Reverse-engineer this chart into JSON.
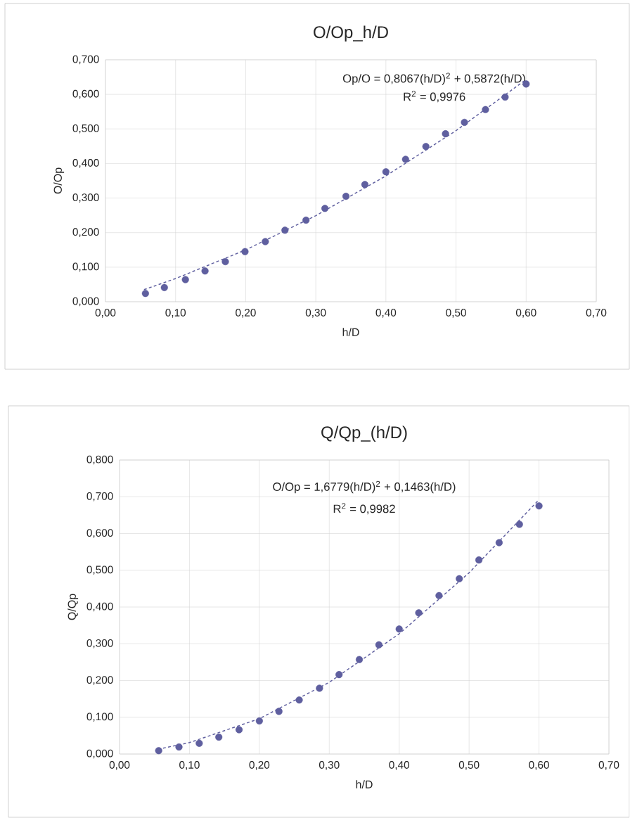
{
  "chart_data": [
    {
      "type": "scatter",
      "title": "O/Op_h/D",
      "xlabel": "h/D",
      "ylabel": "O/Op",
      "xlim": [
        0,
        0.7
      ],
      "ylim": [
        0,
        0.7
      ],
      "xticks": [
        {
          "value": 0,
          "label": "0,00"
        },
        {
          "value": 0.1,
          "label": "0,10"
        },
        {
          "value": 0.2,
          "label": "0,20"
        },
        {
          "value": 0.3,
          "label": "0,30"
        },
        {
          "value": 0.4,
          "label": "0,40"
        },
        {
          "value": 0.5,
          "label": "0,50"
        },
        {
          "value": 0.6,
          "label": "0,60"
        },
        {
          "value": 0.7,
          "label": "0,70"
        }
      ],
      "yticks": [
        {
          "value": 0,
          "label": "0,000"
        },
        {
          "value": 0.1,
          "label": "0,100"
        },
        {
          "value": 0.2,
          "label": "0,200"
        },
        {
          "value": 0.3,
          "label": "0,300"
        },
        {
          "value": 0.4,
          "label": "0,400"
        },
        {
          "value": 0.5,
          "label": "0,500"
        },
        {
          "value": 0.6,
          "label": "0,600"
        },
        {
          "value": 0.7,
          "label": "0,700"
        }
      ],
      "grid": true,
      "annotations": [
        "Op/O = 0,8067(h/D)$^{2}$ + 0,5872(h/D)",
        "R$^{2}$ = 0,9976"
      ],
      "series": [
        {
          "color": "#5f5f9f",
          "marker": "circle",
          "x": [
            0.057,
            0.084,
            0.114,
            0.142,
            0.171,
            0.199,
            0.228,
            0.256,
            0.286,
            0.313,
            0.343,
            0.37,
            0.4,
            0.428,
            0.457,
            0.485,
            0.512,
            0.542,
            0.57,
            0.6
          ],
          "values": [
            0.024,
            0.041,
            0.064,
            0.089,
            0.116,
            0.145,
            0.174,
            0.207,
            0.236,
            0.27,
            0.305,
            0.339,
            0.376,
            0.412,
            0.449,
            0.486,
            0.519,
            0.556,
            0.592,
            0.63
          ]
        },
        {
          "type": "line",
          "color": "#5f5f9f",
          "marker": "none",
          "line_style": "dashed",
          "x": [
            0.055,
            0.1,
            0.2,
            0.3,
            0.4,
            0.5,
            0.6
          ],
          "values": [
            0.035,
            0.067,
            0.15,
            0.249,
            0.364,
            0.495,
            0.643
          ]
        }
      ]
    },
    {
      "type": "scatter",
      "title": "Q/Qp_(h/D)",
      "xlabel": "h/D",
      "ylabel": "Q/Qp",
      "xlim": [
        0,
        0.7
      ],
      "ylim": [
        0,
        0.8
      ],
      "xticks": [
        {
          "value": 0,
          "label": "0,00"
        },
        {
          "value": 0.1,
          "label": "0,10"
        },
        {
          "value": 0.2,
          "label": "0,20"
        },
        {
          "value": 0.3,
          "label": "0,30"
        },
        {
          "value": 0.4,
          "label": "0,40"
        },
        {
          "value": 0.5,
          "label": "0,50"
        },
        {
          "value": 0.6,
          "label": "0,60"
        },
        {
          "value": 0.7,
          "label": "0,70"
        }
      ],
      "yticks": [
        {
          "value": 0,
          "label": "0,000"
        },
        {
          "value": 0.1,
          "label": "0,100"
        },
        {
          "value": 0.2,
          "label": "0,200"
        },
        {
          "value": 0.3,
          "label": "0,300"
        },
        {
          "value": 0.4,
          "label": "0,400"
        },
        {
          "value": 0.5,
          "label": "0,500"
        },
        {
          "value": 0.6,
          "label": "0,600"
        },
        {
          "value": 0.7,
          "label": "0,700"
        },
        {
          "value": 0.8,
          "label": "0,800"
        }
      ],
      "grid": true,
      "annotations": [
        "O/Op = 1,6779(h/D)$^{2}$ + 0,1463(h/D)",
        "R$^{2}$ = 0,9982"
      ],
      "series": [
        {
          "color": "#5f5f9f",
          "marker": "circle",
          "x": [
            0.056,
            0.085,
            0.114,
            0.142,
            0.171,
            0.2,
            0.228,
            0.257,
            0.286,
            0.314,
            0.343,
            0.371,
            0.4,
            0.428,
            0.457,
            0.486,
            0.514,
            0.543,
            0.572,
            0.6
          ],
          "values": [
            0.009,
            0.019,
            0.029,
            0.046,
            0.066,
            0.09,
            0.116,
            0.147,
            0.179,
            0.216,
            0.257,
            0.297,
            0.34,
            0.384,
            0.431,
            0.477,
            0.528,
            0.575,
            0.625,
            0.675
          ]
        },
        {
          "type": "line",
          "color": "#5f5f9f",
          "marker": "none",
          "line_style": "dashed",
          "x": [
            0.055,
            0.1,
            0.2,
            0.3,
            0.4,
            0.5,
            0.6
          ],
          "values": [
            0.013,
            0.031,
            0.096,
            0.195,
            0.327,
            0.493,
            0.692
          ]
        }
      ]
    }
  ]
}
